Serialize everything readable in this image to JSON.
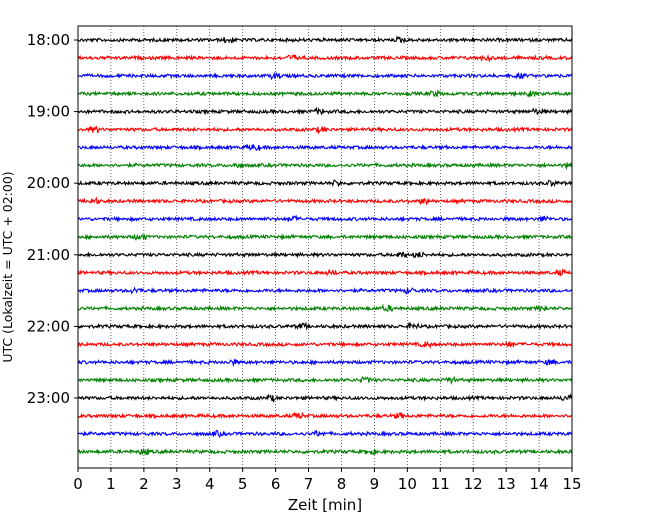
{
  "chart_data": {
    "type": "line",
    "title": "",
    "xlabel": "Zeit  [min]",
    "ylabel": "UTC (Lokalzeit = UTC + 02:00)",
    "xlim": [
      0,
      15
    ],
    "x_ticks": [
      "0",
      "1",
      "2",
      "3",
      "4",
      "5",
      "6",
      "7",
      "8",
      "9",
      "10",
      "11",
      "12",
      "13",
      "14",
      "15"
    ],
    "y_ticks": [
      {
        "value": 0,
        "label": "18:00"
      },
      {
        "value": 4,
        "label": "19:00"
      },
      {
        "value": 8,
        "label": "20:00"
      },
      {
        "value": 12,
        "label": "21:00"
      },
      {
        "value": 16,
        "label": "22:00"
      },
      {
        "value": 20,
        "label": "23:00"
      }
    ],
    "x_grid": true,
    "y_grid": false,
    "row_duration_min": 15,
    "rows": [
      {
        "start": "18:00",
        "color": "#000000"
      },
      {
        "start": "18:15",
        "color": "#ff0000"
      },
      {
        "start": "18:30",
        "color": "#0000ff"
      },
      {
        "start": "18:45",
        "color": "#008000"
      },
      {
        "start": "19:00",
        "color": "#000000"
      },
      {
        "start": "19:15",
        "color": "#ff0000"
      },
      {
        "start": "19:30",
        "color": "#0000ff"
      },
      {
        "start": "19:45",
        "color": "#008000"
      },
      {
        "start": "20:00",
        "color": "#000000"
      },
      {
        "start": "20:15",
        "color": "#ff0000"
      },
      {
        "start": "20:30",
        "color": "#0000ff"
      },
      {
        "start": "20:45",
        "color": "#008000"
      },
      {
        "start": "21:00",
        "color": "#000000"
      },
      {
        "start": "21:15",
        "color": "#ff0000"
      },
      {
        "start": "21:30",
        "color": "#0000ff"
      },
      {
        "start": "21:45",
        "color": "#008000"
      },
      {
        "start": "22:00",
        "color": "#000000"
      },
      {
        "start": "22:15",
        "color": "#ff0000"
      },
      {
        "start": "22:30",
        "color": "#0000ff"
      },
      {
        "start": "22:45",
        "color": "#008000"
      },
      {
        "start": "23:00",
        "color": "#000000"
      },
      {
        "start": "23:15",
        "color": "#ff0000"
      },
      {
        "start": "23:30",
        "color": "#0000ff"
      },
      {
        "start": "23:45",
        "color": "#008000"
      }
    ]
  }
}
